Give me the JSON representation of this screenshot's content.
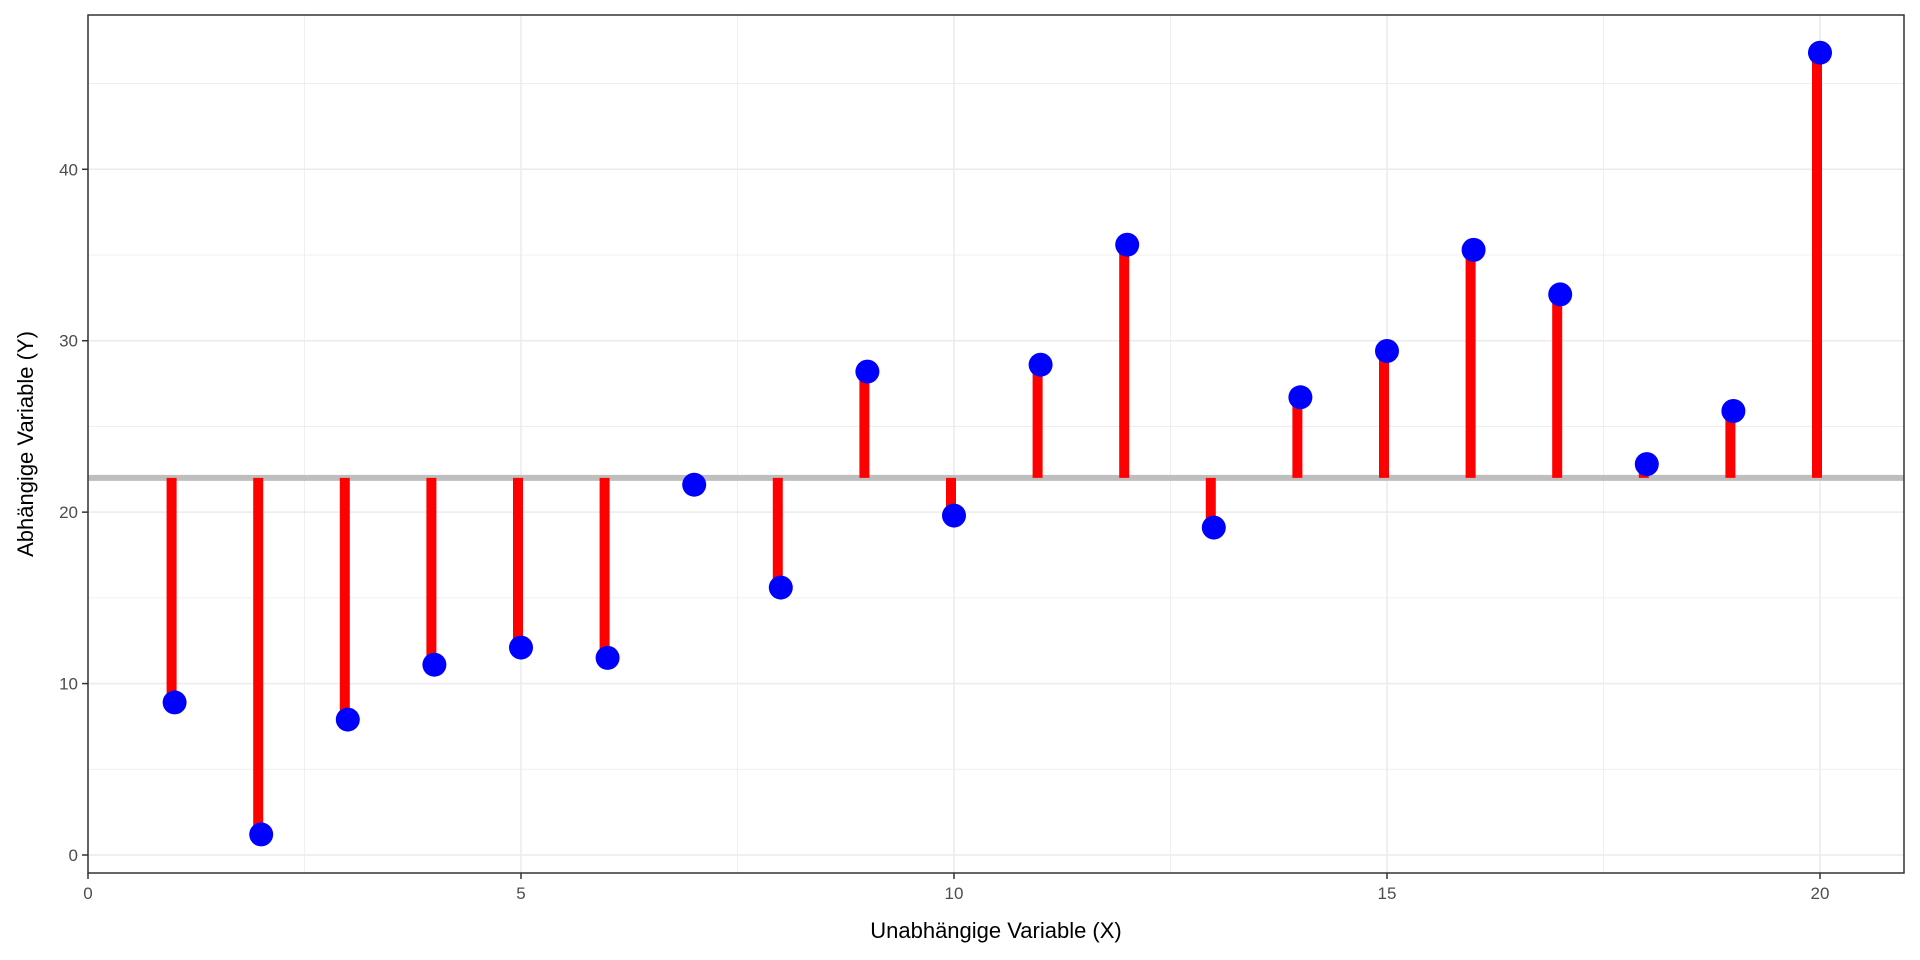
{
  "chart_data": {
    "type": "scatter",
    "subtype": "lollipop-residuals-from-mean",
    "title": "",
    "xlabel": "Unabhängige Variable (X)",
    "ylabel": "Abhängige Variable (Y)",
    "xlim": [
      0,
      20.97
    ],
    "ylim": [
      -1.05,
      49
    ],
    "xticks": [
      0,
      5,
      10,
      15,
      20
    ],
    "yticks": [
      0,
      10,
      20,
      30,
      40
    ],
    "grid": true,
    "mean_line": 22.0,
    "x": [
      1,
      2,
      3,
      4,
      5,
      6,
      7,
      8,
      9,
      10,
      11,
      12,
      13,
      14,
      15,
      16,
      17,
      18,
      19,
      20
    ],
    "y": [
      8.9,
      1.2,
      7.9,
      11.1,
      12.1,
      11.5,
      21.6,
      15.6,
      28.2,
      19.8,
      28.6,
      35.6,
      19.1,
      26.7,
      29.4,
      35.3,
      32.7,
      22.8,
      25.9,
      46.8
    ],
    "colors": {
      "point": "#0000ff",
      "segment": "#ff0000",
      "mean_line": "#bebebe",
      "grid": "#ebebeb",
      "axis": "#333333"
    }
  }
}
